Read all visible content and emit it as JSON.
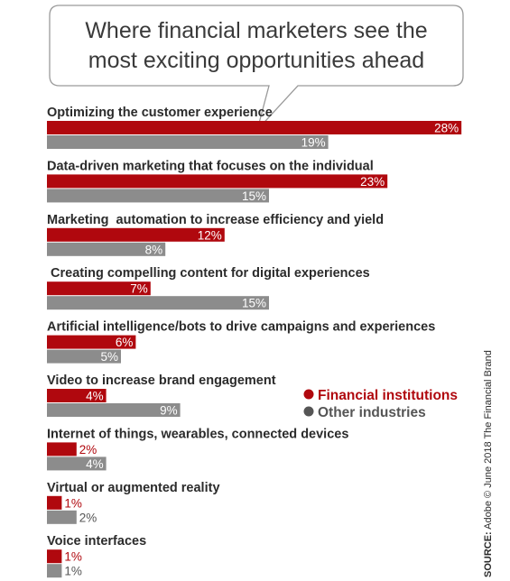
{
  "title_lines": [
    "Where financial marketers see the",
    "most exciting opportunities ahead"
  ],
  "legend": {
    "financial": "Financial institutions",
    "other": "Other industries"
  },
  "source": {
    "label": "SOURCE:",
    "text": " Adobe © June 2018 The Financial Brand"
  },
  "colors": {
    "financial": "#b0080e",
    "other": "#8c8c8c",
    "financial_text": "#b0080e",
    "other_text": "#555555"
  },
  "chart_data": {
    "type": "bar",
    "orientation": "horizontal",
    "categories": [
      "Optimizing the customer experience",
      "Data-driven marketing that focuses on the individual",
      "Marketing  automation to increase efficiency and yield",
      " Creating compelling content for digital experiences",
      "Artificial intelligence/bots to drive campaigns and experiences",
      "Video to increase brand engagement",
      "Internet of things, wearables, connected devices",
      "Virtual or augmented reality",
      "Voice interfaces"
    ],
    "series": [
      {
        "name": "Financial institutions",
        "values": [
          28,
          23,
          12,
          7,
          6,
          4,
          2,
          1,
          1
        ]
      },
      {
        "name": "Other industries",
        "values": [
          19,
          15,
          8,
          15,
          5,
          9,
          4,
          2,
          1
        ]
      }
    ],
    "value_suffix": "%",
    "legend_position": "right",
    "grid": false
  }
}
